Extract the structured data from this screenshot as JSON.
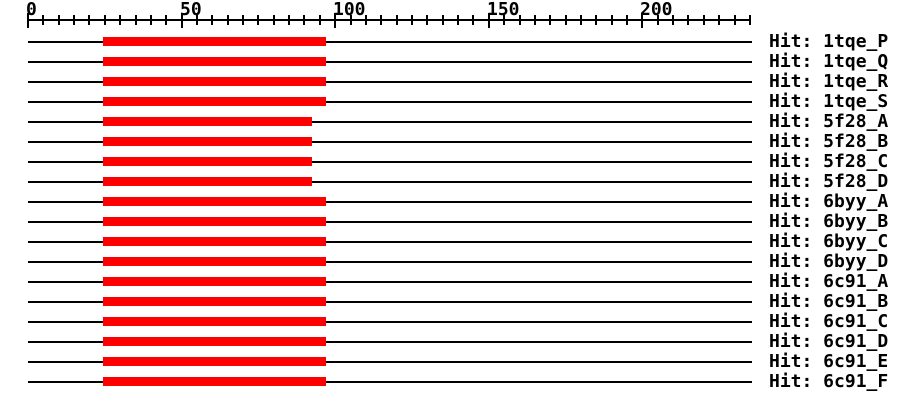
{
  "figure": {
    "background": "#ffffff",
    "bar_color": "#ff0000",
    "axis_color": "#000000",
    "text_color": "#000000"
  },
  "chart_data": {
    "type": "bar",
    "subtype": "horizontal-alignment-span-overview",
    "title": "",
    "xlabel": "",
    "ylabel": "",
    "grid": false,
    "legend": false,
    "axis": {
      "min": 0,
      "max": 235,
      "position": "top",
      "major_ticks": [
        0,
        50,
        100,
        150,
        200
      ],
      "major_tick_labels": [
        "0",
        "50",
        "100",
        "150",
        "200"
      ],
      "minor_tick_interval": 5
    },
    "rows": [
      {
        "label": "Hit: 1tqe_P",
        "hit_id": "1tqe_P",
        "span": [
          24.5,
          97
        ]
      },
      {
        "label": "Hit: 1tqe_Q",
        "hit_id": "1tqe_Q",
        "span": [
          24.5,
          97
        ]
      },
      {
        "label": "Hit: 1tqe_R",
        "hit_id": "1tqe_R",
        "span": [
          24.5,
          97
        ]
      },
      {
        "label": "Hit: 1tqe_S",
        "hit_id": "1tqe_S",
        "span": [
          24.5,
          97
        ]
      },
      {
        "label": "Hit: 5f28_A",
        "hit_id": "5f28_A",
        "span": [
          24.5,
          92.5
        ]
      },
      {
        "label": "Hit: 5f28_B",
        "hit_id": "5f28_B",
        "span": [
          24.5,
          92.5
        ]
      },
      {
        "label": "Hit: 5f28_C",
        "hit_id": "5f28_C",
        "span": [
          24.5,
          92.5
        ]
      },
      {
        "label": "Hit: 5f28_D",
        "hit_id": "5f28_D",
        "span": [
          24.5,
          92.5
        ]
      },
      {
        "label": "Hit: 6byy_A",
        "hit_id": "6byy_A",
        "span": [
          24.5,
          97
        ]
      },
      {
        "label": "Hit: 6byy_B",
        "hit_id": "6byy_B",
        "span": [
          24.5,
          97
        ]
      },
      {
        "label": "Hit: 6byy_C",
        "hit_id": "6byy_C",
        "span": [
          24.5,
          97
        ]
      },
      {
        "label": "Hit: 6byy_D",
        "hit_id": "6byy_D",
        "span": [
          24.5,
          97
        ]
      },
      {
        "label": "Hit: 6c91_A",
        "hit_id": "6c91_A",
        "span": [
          24.5,
          97
        ]
      },
      {
        "label": "Hit: 6c91_B",
        "hit_id": "6c91_B",
        "span": [
          24.5,
          97
        ]
      },
      {
        "label": "Hit: 6c91_C",
        "hit_id": "6c91_C",
        "span": [
          24.5,
          97
        ]
      },
      {
        "label": "Hit: 6c91_D",
        "hit_id": "6c91_D",
        "span": [
          24.5,
          97
        ]
      },
      {
        "label": "Hit: 6c91_E",
        "hit_id": "6c91_E",
        "span": [
          24.5,
          97
        ]
      },
      {
        "label": "Hit: 6c91_F",
        "hit_id": "6c91_F",
        "span": [
          24.5,
          97
        ]
      }
    ]
  }
}
